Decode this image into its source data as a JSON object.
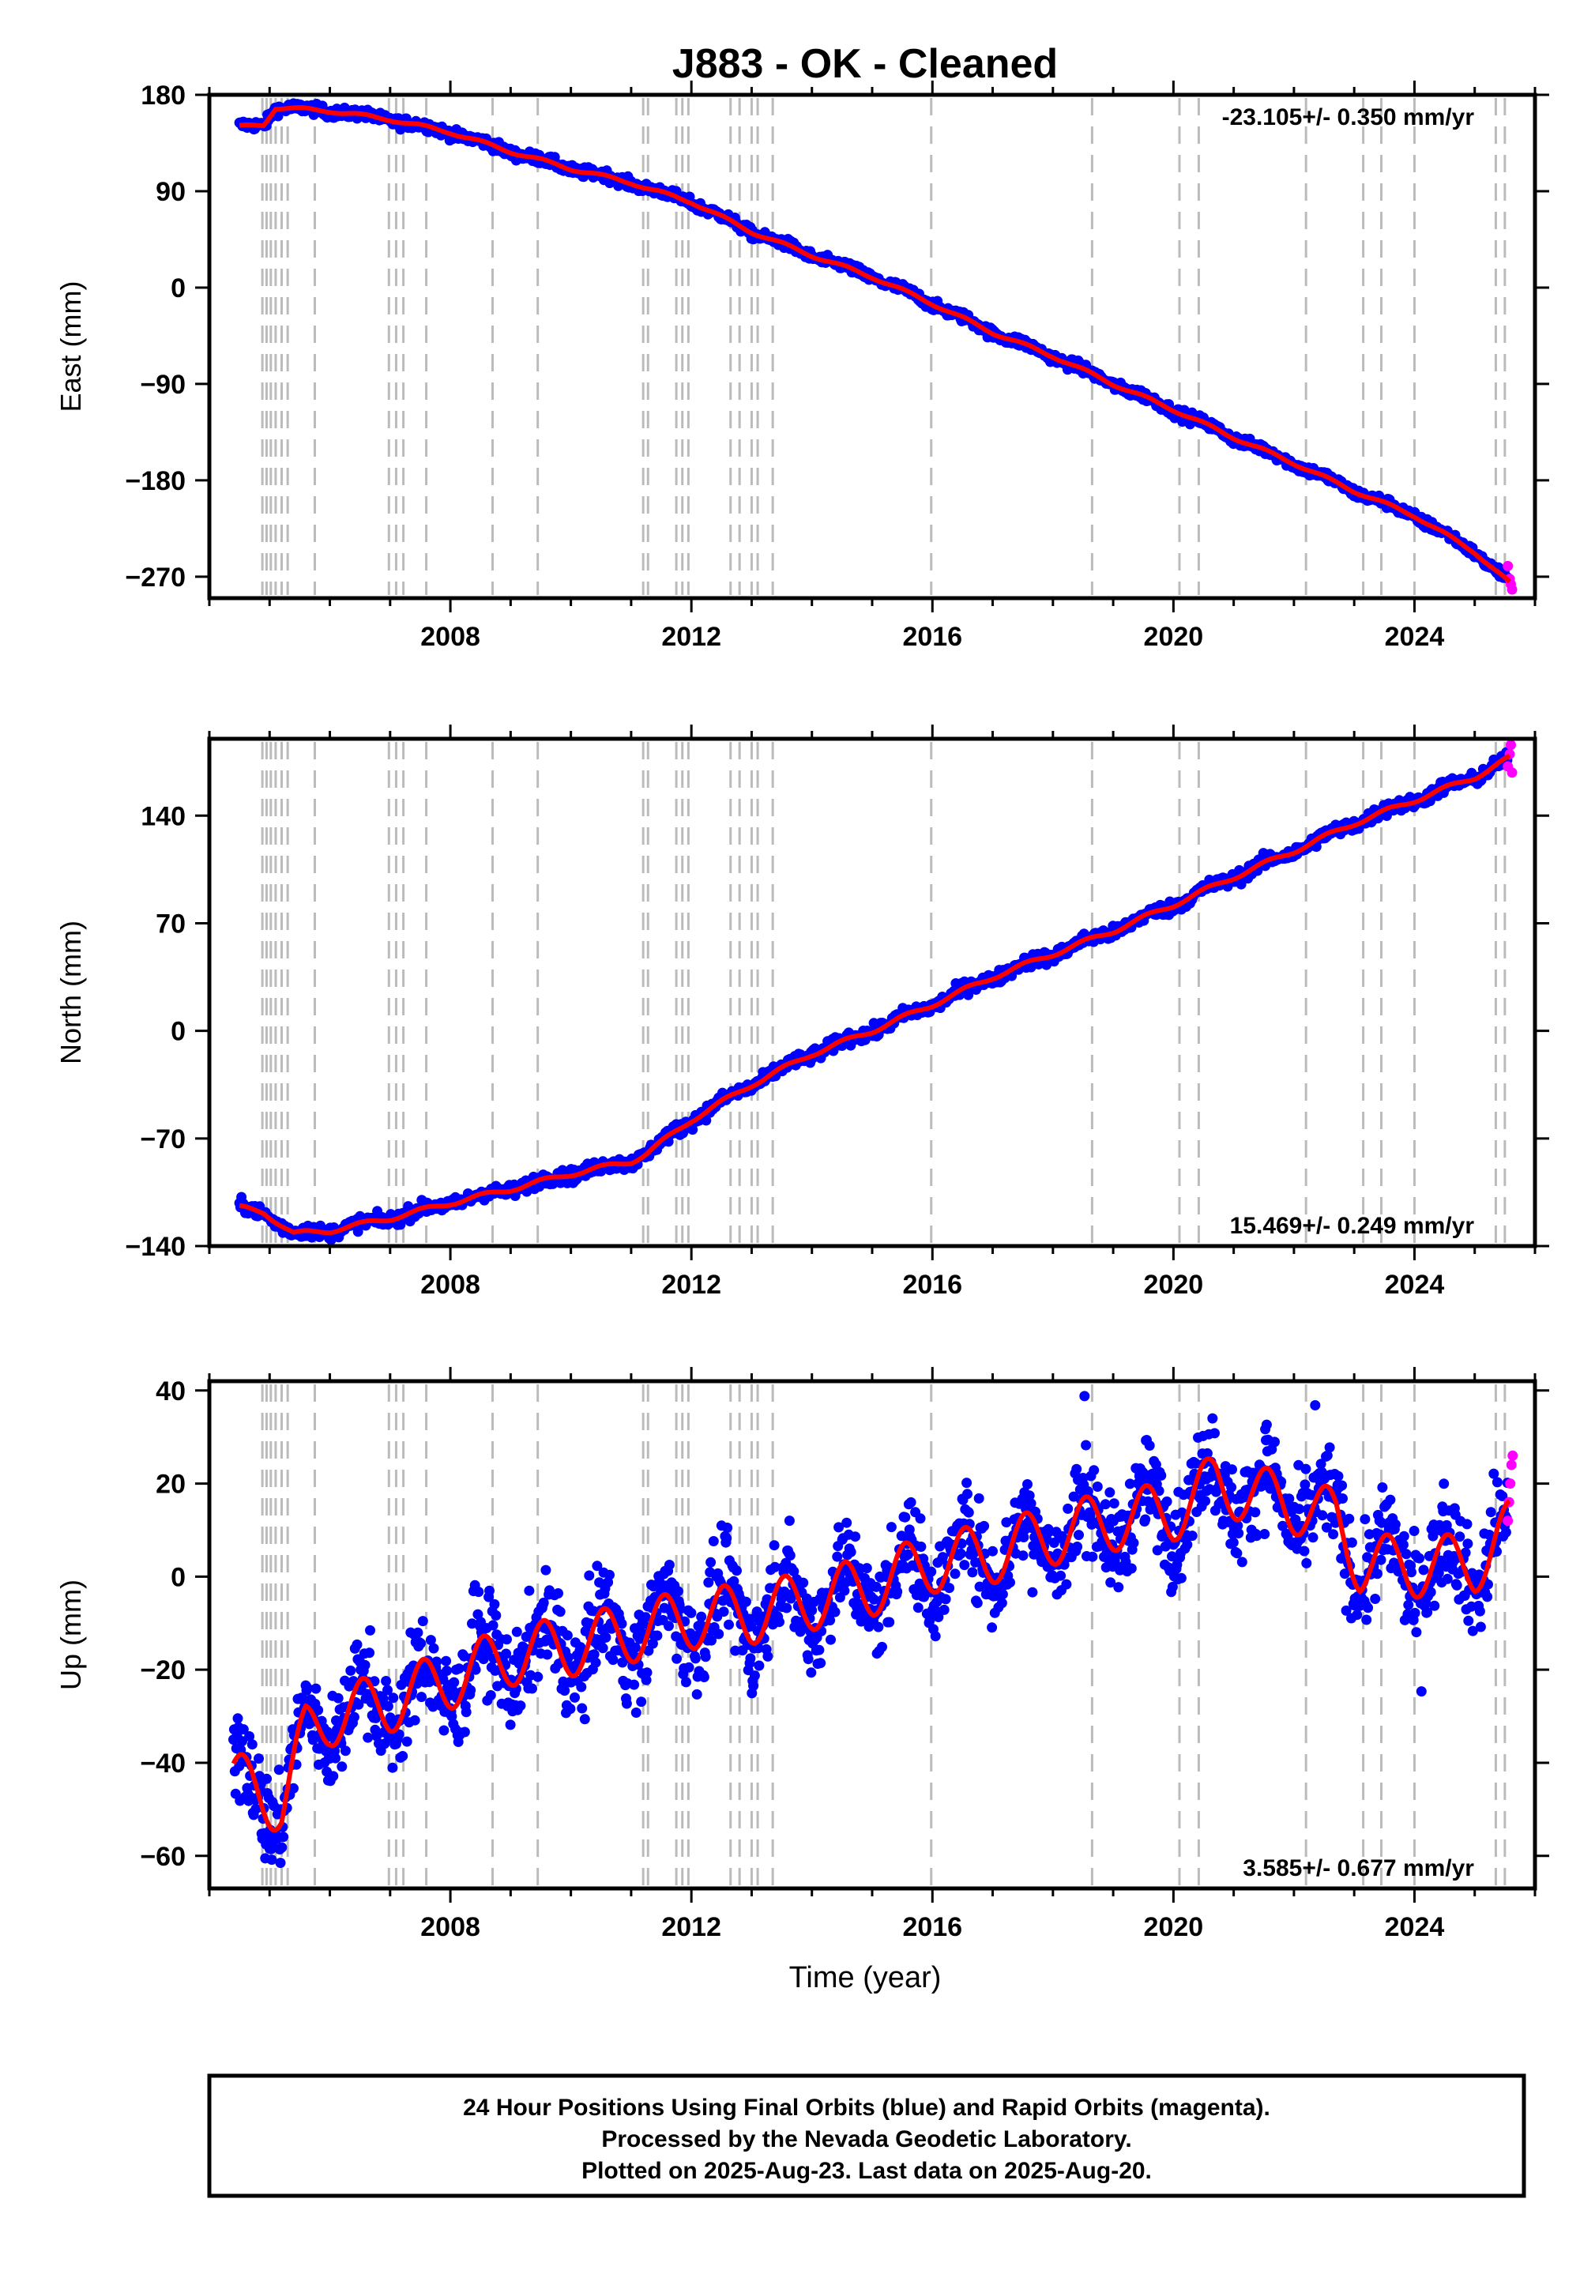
{
  "title": "J883  - OK - Cleaned",
  "xlabel": "Time (year)",
  "footer": {
    "line1": "24 Hour Positions Using Final Orbits (blue) and Rapid Orbits (magenta).",
    "line2": "Processed by the Nevada Geodetic Laboratory.",
    "line3": "Plotted on 2025-Aug-23. Last data on 2025-Aug-20."
  },
  "colors": {
    "final_points": "#0000ff",
    "rapid_points": "#ff00ff",
    "model_line": "#ff0000",
    "event_lines": "#bbbbbb"
  },
  "chart_data": [
    {
      "type": "scatter",
      "id": "east",
      "ylabel": "East (mm)",
      "rate_text": "-23.105+/- 0.350 mm/yr",
      "rate_position": "top-right",
      "xlim": [
        2004.0,
        2026.0
      ],
      "ylim": [
        -290,
        180
      ],
      "x_ticks": [
        2008,
        2012,
        2016,
        2020,
        2024
      ],
      "y_ticks": [
        180,
        90,
        0,
        -90,
        -180,
        -270
      ],
      "y_tick_labels": [
        "180",
        "90",
        "0",
        "−90",
        "−180",
        "−270"
      ],
      "trend": {
        "x": [
          2004.5,
          2004.9,
          2005.1,
          2006.0,
          2007.0,
          2008.0,
          2009.0,
          2010.0,
          2011.0,
          2011.3,
          2012.0,
          2013.0,
          2014.0,
          2015.0,
          2016.0,
          2017.0,
          2018.0,
          2019.0,
          2020.0,
          2021.0,
          2022.0,
          2023.0,
          2024.0,
          2025.0,
          2025.6
        ],
        "y": [
          150,
          152,
          168,
          165,
          157,
          145,
          127,
          111,
          98,
          92,
          80,
          52,
          30,
          10,
          -15,
          -42,
          -64,
          -90,
          -114,
          -140,
          -164,
          -190,
          -213,
          -247,
          -277
        ]
      },
      "seasonal_amp": 1.5,
      "noise": 2.5,
      "rapid_points": {
        "x": [
          2025.55,
          2025.58,
          2025.6,
          2025.62
        ],
        "y": [
          -260,
          -272,
          -277,
          -282
        ]
      }
    },
    {
      "type": "scatter",
      "id": "north",
      "ylabel": "North (mm)",
      "rate_text": "15.469+/- 0.249 mm/yr",
      "rate_position": "bottom-right",
      "xlim": [
        2004.0,
        2026.0
      ],
      "ylim": [
        -140,
        190
      ],
      "x_ticks": [
        2008,
        2012,
        2016,
        2020,
        2024
      ],
      "y_ticks": [
        140,
        70,
        0,
        -70,
        -140
      ],
      "y_tick_labels": [
        "140",
        "70",
        "0",
        "−70",
        "−140"
      ],
      "trend": {
        "x": [
          2004.5,
          2004.9,
          2005.4,
          2006.0,
          2007.0,
          2008.0,
          2009.0,
          2010.0,
          2011.0,
          2011.25,
          2012.0,
          2013.0,
          2014.0,
          2015.0,
          2016.0,
          2017.0,
          2018.0,
          2019.0,
          2020.0,
          2021.0,
          2022.0,
          2023.0,
          2024.0,
          2025.0,
          2025.6
        ],
        "y": [
          -115,
          -118,
          -132,
          -130,
          -122,
          -112,
          -103,
          -93,
          -85,
          -80,
          -58,
          -35,
          -15,
          0,
          17,
          35,
          50,
          65,
          82,
          100,
          117,
          135,
          150,
          165,
          178
        ]
      },
      "seasonal_amp": 1.5,
      "noise": 2.2,
      "rapid_points": {
        "x": [
          2025.55,
          2025.58,
          2025.6,
          2025.62
        ],
        "y": [
          172,
          180,
          186,
          168
        ]
      }
    },
    {
      "type": "scatter",
      "id": "up",
      "ylabel": "Up (mm)",
      "rate_text": "3.585+/- 0.677 mm/yr",
      "rate_position": "bottom-right",
      "xlim": [
        2004.0,
        2026.0
      ],
      "ylim": [
        -67,
        42
      ],
      "x_ticks": [
        2008,
        2012,
        2016,
        2020,
        2024
      ],
      "y_ticks": [
        40,
        20,
        0,
        -20,
        -40,
        -60
      ],
      "y_tick_labels": [
        "40",
        "20",
        "0",
        "−20",
        "−40",
        "−60"
      ],
      "trend": {
        "x": [
          2004.4,
          2004.8,
          2005.2,
          2005.6,
          2006.0,
          2007.0,
          2008.0,
          2009.0,
          2010.0,
          2011.0,
          2012.0,
          2013.0,
          2014.0,
          2015.0,
          2016.0,
          2017.0,
          2018.0,
          2019.0,
          2020.0,
          2020.7,
          2021.5,
          2022.2,
          2022.7,
          2023.1,
          2024.0,
          2025.0,
          2025.6
        ],
        "y": [
          -44,
          -46,
          -49,
          -34,
          -30,
          -27,
          -22,
          -17,
          -15,
          -12,
          -9,
          -8,
          -5,
          -2,
          3,
          5,
          9,
          12,
          14,
          20,
          17,
          15,
          12,
          3,
          2,
          3,
          10
        ]
      },
      "seasonal_amp": 6.5,
      "noise": 5.0,
      "rapid_points": {
        "x": [
          2025.55,
          2025.57,
          2025.59,
          2025.61,
          2025.63
        ],
        "y": [
          12,
          16,
          20,
          24,
          26
        ]
      }
    }
  ],
  "event_years": [
    2004.88,
    2004.95,
    2005.02,
    2005.1,
    2005.2,
    2005.3,
    2005.75,
    2006.98,
    2007.1,
    2007.22,
    2007.6,
    2008.7,
    2009.45,
    2011.2,
    2011.28,
    2011.75,
    2011.85,
    2011.95,
    2012.65,
    2012.8,
    2013.0,
    2013.1,
    2013.35,
    2015.98,
    2018.65,
    2020.1,
    2020.42,
    2022.2,
    2023.15,
    2023.45,
    2024.0,
    2025.35,
    2025.5
  ]
}
